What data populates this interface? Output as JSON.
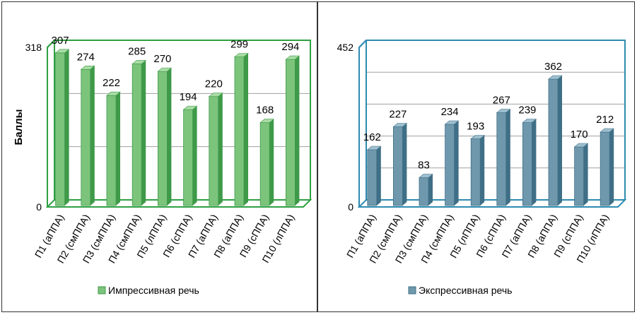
{
  "chart_data": [
    {
      "type": "bar",
      "title": "",
      "xlabel": "",
      "ylabel": "Баллы",
      "ylim": [
        0,
        318
      ],
      "y_tick_labels": [
        "0",
        "318"
      ],
      "categories": [
        "П1 (аППА)",
        "П2 (смППА)",
        "П3 (смППА)",
        "П4 (смППА)",
        "П5 (лППА)",
        "П6 (сППА)",
        "П7 (аППА)",
        "П8 (аППА)",
        "П9 (сППА)",
        "П10 (лППА)"
      ],
      "series": [
        {
          "name": "Импрессивная речь",
          "values": [
            307,
            274,
            222,
            285,
            270,
            194,
            220,
            299,
            168,
            294
          ]
        }
      ],
      "grid": true,
      "legend_position": "bottom",
      "colors": {
        "bar": "#7cc47c",
        "bar_side": "#3e9a48",
        "bar_top": "#a9dca5",
        "frame": "#2ea043"
      }
    },
    {
      "type": "bar",
      "title": "",
      "xlabel": "",
      "ylabel": "",
      "ylim": [
        0,
        452
      ],
      "y_tick_labels": [
        "0",
        "452"
      ],
      "categories": [
        "П1 (аППА)",
        "П2 (смППА)",
        "П3 (смППА)",
        "П4 (смППА)",
        "П5 (лППА)",
        "П6 (сППА)",
        "П7 (аППА)",
        "П8 (аППА)",
        "П9 (сППА)",
        "П10 (лППА)"
      ],
      "series": [
        {
          "name": "Экспрессивная речь",
          "values": [
            162,
            227,
            83,
            234,
            193,
            267,
            239,
            362,
            170,
            212
          ]
        }
      ],
      "grid": true,
      "legend_position": "bottom",
      "colors": {
        "bar": "#6f98ad",
        "bar_side": "#3f6f86",
        "bar_top": "#9ebfcf",
        "frame": "#2e8bb0"
      }
    }
  ]
}
